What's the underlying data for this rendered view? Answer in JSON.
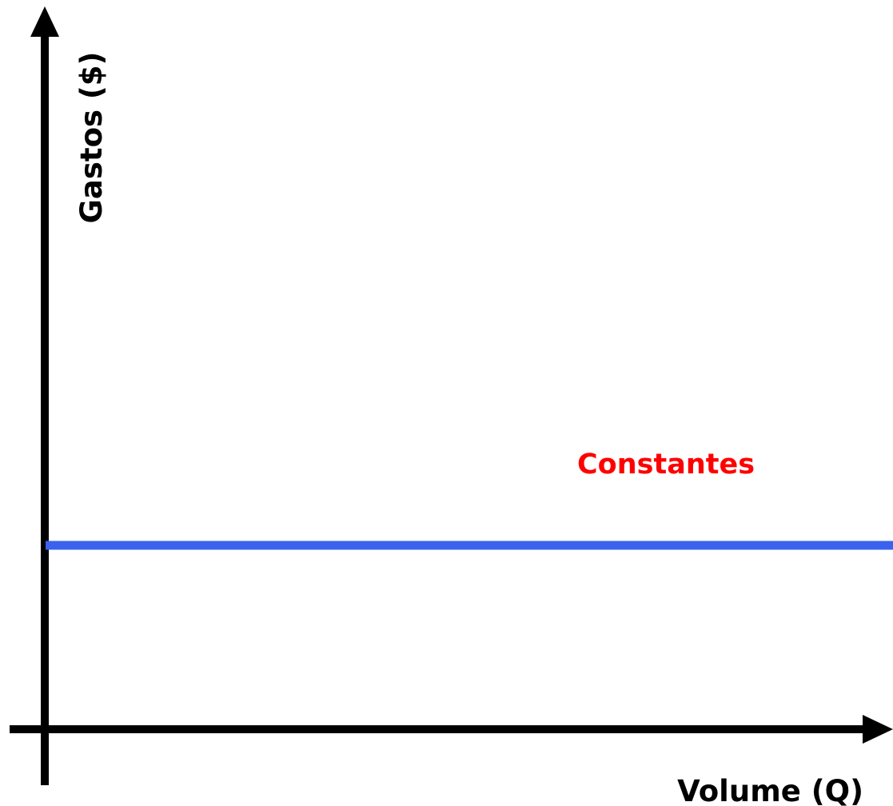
{
  "y_axis_label": "Gastos ($)",
  "x_axis_label": "Volume (Q)",
  "line_label": "Constantes"
}
